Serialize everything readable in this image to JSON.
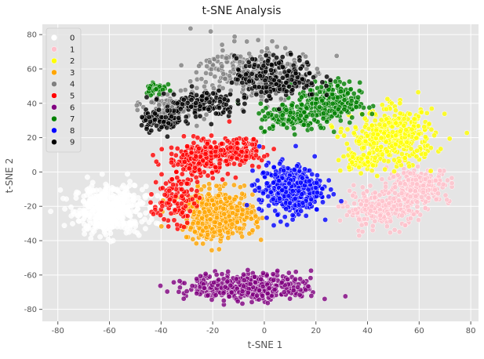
{
  "chart_data": {
    "type": "scatter",
    "title": "t-SNE Analysis",
    "xlabel": "t-SNE 1",
    "ylabel": "t-SNE 2",
    "xlim": [
      -86,
      83
    ],
    "ylim": [
      -87,
      86
    ],
    "xticks": [
      -80,
      -60,
      -40,
      -20,
      0,
      20,
      40,
      60,
      80
    ],
    "yticks": [
      -80,
      -60,
      -40,
      -20,
      0,
      20,
      40,
      60,
      80
    ],
    "grid": true,
    "legend_position": "top-left",
    "background_color": "#e5e5e5",
    "grid_color": "#ffffff",
    "series": [
      {
        "name": "0",
        "color": "#ffffff",
        "count": 480,
        "clusters": [
          {
            "cx": -60,
            "cy": -22,
            "sx": 7,
            "sy": 7,
            "w": 1
          }
        ]
      },
      {
        "name": "1",
        "color": "#ffc0cb",
        "count": 480,
        "clusters": [
          {
            "cx": 45,
            "cy": -22,
            "sx": 7,
            "sy": 5,
            "w": 0.5
          },
          {
            "cx": 60,
            "cy": -8,
            "sx": 6,
            "sy": 5,
            "w": 0.5
          }
        ]
      },
      {
        "name": "2",
        "color": "#ffff00",
        "count": 460,
        "clusters": [
          {
            "cx": 50,
            "cy": 20,
            "sx": 8,
            "sy": 8,
            "w": 0.85
          },
          {
            "cx": 38,
            "cy": 6,
            "sx": 4,
            "sy": 3,
            "w": 0.15
          }
        ]
      },
      {
        "name": "3",
        "color": "#ffa500",
        "count": 480,
        "clusters": [
          {
            "cx": -18,
            "cy": -25,
            "sx": 7,
            "sy": 7,
            "w": 1
          }
        ]
      },
      {
        "name": "4",
        "color": "#808080",
        "count": 420,
        "clusters": [
          {
            "cx": -5,
            "cy": 58,
            "sx": 10,
            "sy": 8,
            "w": 0.7
          },
          {
            "cx": -35,
            "cy": 38,
            "sx": 6,
            "sy": 4,
            "w": 0.3
          }
        ]
      },
      {
        "name": "5",
        "color": "#ff0000",
        "count": 430,
        "clusters": [
          {
            "cx": -25,
            "cy": 8,
            "sx": 6,
            "sy": 5,
            "w": 0.5
          },
          {
            "cx": -10,
            "cy": 12,
            "sx": 5,
            "sy": 4,
            "w": 0.25
          },
          {
            "cx": -35,
            "cy": -15,
            "sx": 4,
            "sy": 8,
            "w": 0.25
          }
        ]
      },
      {
        "name": "6",
        "color": "#800080",
        "count": 420,
        "clusters": [
          {
            "cx": -5,
            "cy": -67,
            "sx": 12,
            "sy": 4,
            "w": 1
          }
        ]
      },
      {
        "name": "7",
        "color": "#008000",
        "count": 430,
        "clusters": [
          {
            "cx": 25,
            "cy": 40,
            "sx": 6,
            "sy": 6,
            "w": 0.6
          },
          {
            "cx": 10,
            "cy": 32,
            "sx": 6,
            "sy": 4,
            "w": 0.3
          },
          {
            "cx": -42,
            "cy": 49,
            "sx": 2,
            "sy": 2,
            "w": 0.1
          }
        ]
      },
      {
        "name": "8",
        "color": "#0000ff",
        "count": 430,
        "clusters": [
          {
            "cx": 10,
            "cy": -10,
            "sx": 6,
            "sy": 7,
            "w": 1
          }
        ]
      },
      {
        "name": "9",
        "color": "#000000",
        "count": 420,
        "clusters": [
          {
            "cx": 5,
            "cy": 55,
            "sx": 8,
            "sy": 6,
            "w": 0.5
          },
          {
            "cx": -25,
            "cy": 40,
            "sx": 7,
            "sy": 4,
            "w": 0.3
          },
          {
            "cx": -40,
            "cy": 30,
            "sx": 4,
            "sy": 3,
            "w": 0.2
          }
        ]
      }
    ]
  }
}
